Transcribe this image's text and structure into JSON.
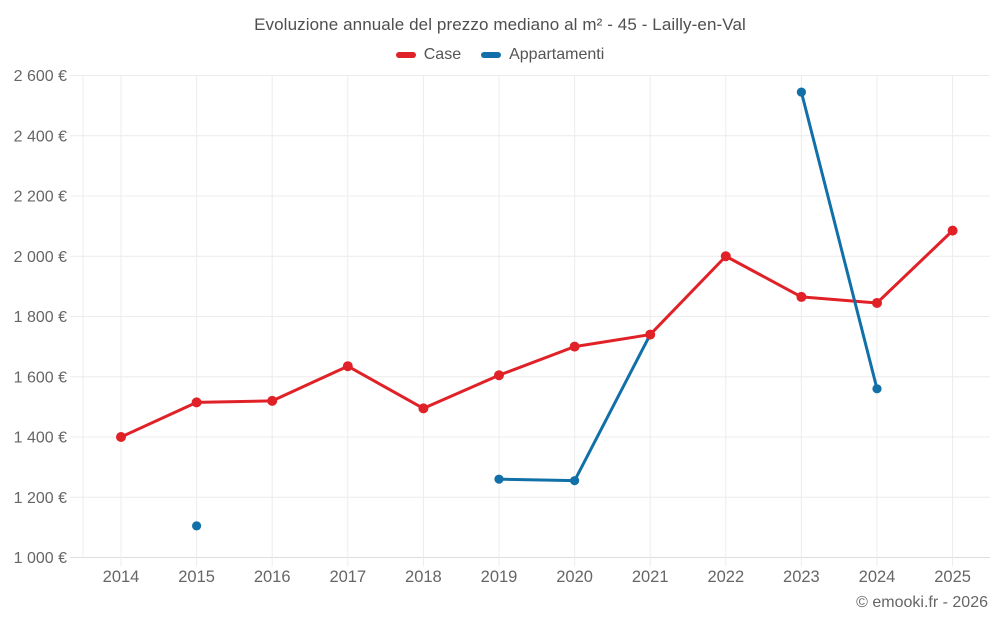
{
  "chart_data": {
    "type": "line",
    "title": "Evoluzione annuale del prezzo mediano al m² - 45 - Lailly-en-Val",
    "categories": [
      "2014",
      "2015",
      "2016",
      "2017",
      "2018",
      "2019",
      "2020",
      "2021",
      "2022",
      "2023",
      "2024",
      "2025"
    ],
    "series": [
      {
        "name": "Case",
        "color": "#e02228",
        "values": [
          1400,
          1515,
          1520,
          1635,
          1495,
          1605,
          1700,
          1740,
          2000,
          1865,
          1845,
          2085
        ]
      },
      {
        "name": "Appartamenti",
        "color": "#1270a8",
        "values": [
          null,
          1105,
          null,
          null,
          null,
          1260,
          1255,
          1740,
          null,
          2545,
          1560,
          null
        ]
      }
    ],
    "ylim": [
      1000,
      2600
    ],
    "ytick_step": 200,
    "ytick_labels": [
      "1 000 €",
      "1 200 €",
      "1 400 €",
      "1 600 €",
      "1 800 €",
      "2 000 €",
      "2 200 €",
      "2 400 €",
      "2 600 €"
    ],
    "grid": true,
    "legend_position": "top-center",
    "unit": "€"
  },
  "footer": {
    "copyright": "© emooki.fr - 2026"
  },
  "colors": {
    "background": "#ffffff",
    "gridline": "#ececec",
    "axis_line": "#dedede",
    "title_text": "#4f4f4f",
    "tick_text": "#666666",
    "legend_text": "#555555",
    "copyright_text": "#666666"
  }
}
